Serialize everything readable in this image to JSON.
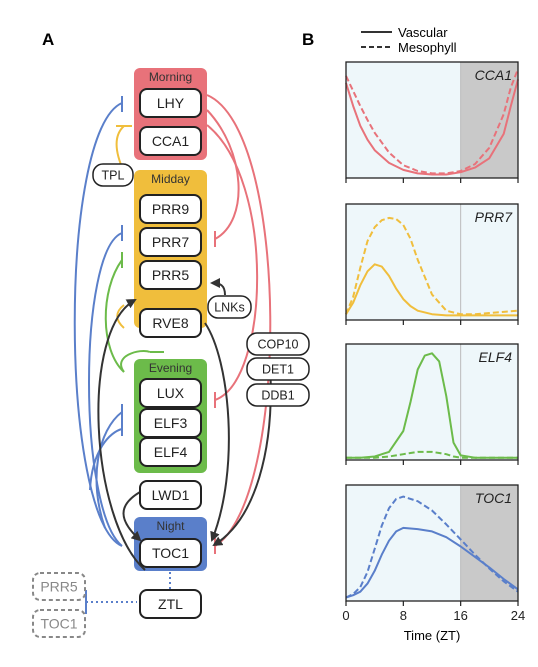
{
  "panel_a": {
    "label": "A",
    "groups": [
      {
        "name": "Morning",
        "color": "#e8727a"
      },
      {
        "name": "Midday",
        "color": "#f0be3c"
      },
      {
        "name": "Evening",
        "color": "#6cbb4a"
      },
      {
        "name": "Night",
        "color": "#5a7fca"
      }
    ],
    "genes": [
      "LHY",
      "CCA1",
      "PRR9",
      "PRR7",
      "PRR5",
      "RVE8",
      "LUX",
      "ELF3",
      "ELF4",
      "LWD1",
      "TOC1",
      "ZTL"
    ],
    "regulators": [
      "TPL",
      "LNKs",
      "COP10",
      "DET1",
      "DDB1"
    ],
    "ztl_targets": [
      "PRR5",
      "TOC1"
    ],
    "edge_colors": {
      "morning": "#e8727a",
      "midday": "#f0be3c",
      "evening": "#6cbb4a",
      "night": "#5a7fca",
      "activation": "#333333"
    }
  },
  "panel_b": {
    "label": "B",
    "legend": {
      "solid": "Vascular",
      "dashed": "Mesophyll"
    },
    "xlabel": "Time (ZT)",
    "xticks": [
      "0",
      "8",
      "16",
      "24"
    ],
    "xlim": [
      0,
      24
    ],
    "night_start": 16,
    "shade_colors": {
      "day": "#eef7fa",
      "night": "#c9c9c9"
    },
    "chart_data": [
      {
        "type": "line",
        "title": "CCA1",
        "color": "#e8727a",
        "x": [
          0,
          1,
          2,
          3,
          4,
          6,
          8,
          10,
          12,
          14,
          16,
          18,
          20,
          22,
          23,
          24
        ],
        "series": [
          {
            "name": "Vascular",
            "values": [
              0.82,
              0.62,
              0.45,
              0.33,
              0.24,
              0.13,
              0.07,
              0.04,
              0.03,
              0.03,
              0.05,
              0.09,
              0.17,
              0.38,
              0.62,
              0.85
            ]
          },
          {
            "name": "Mesophyll",
            "values": [
              0.88,
              0.75,
              0.62,
              0.5,
              0.39,
              0.22,
              0.11,
              0.06,
              0.04,
              0.04,
              0.06,
              0.12,
              0.26,
              0.55,
              0.78,
              0.94
            ]
          }
        ]
      },
      {
        "type": "line",
        "title": "PRR7",
        "color": "#f0be3c",
        "x": [
          0,
          1,
          2,
          3,
          4,
          5,
          6,
          7,
          8,
          9,
          10,
          12,
          14,
          16,
          18,
          20,
          22,
          24
        ],
        "series": [
          {
            "name": "Vascular",
            "values": [
              0.05,
              0.15,
              0.3,
              0.42,
              0.48,
              0.46,
              0.38,
              0.27,
              0.18,
              0.12,
              0.08,
              0.05,
              0.04,
              0.04,
              0.04,
              0.04,
              0.04,
              0.04
            ]
          },
          {
            "name": "Mesophyll",
            "values": [
              0.05,
              0.2,
              0.45,
              0.68,
              0.8,
              0.86,
              0.88,
              0.87,
              0.82,
              0.7,
              0.52,
              0.22,
              0.08,
              0.05,
              0.05,
              0.06,
              0.07,
              0.08
            ]
          }
        ]
      },
      {
        "type": "line",
        "title": "ELF4",
        "color": "#6cbb4a",
        "x": [
          0,
          2,
          4,
          6,
          8,
          9,
          10,
          11,
          12,
          13,
          14,
          15,
          16,
          18,
          20,
          22,
          24
        ],
        "series": [
          {
            "name": "Vascular",
            "values": [
              0.02,
              0.02,
              0.03,
              0.07,
              0.25,
              0.5,
              0.78,
              0.9,
              0.92,
              0.85,
              0.55,
              0.15,
              0.04,
              0.02,
              0.02,
              0.02,
              0.02
            ]
          },
          {
            "name": "Mesophyll",
            "values": [
              0.02,
              0.02,
              0.02,
              0.03,
              0.05,
              0.06,
              0.07,
              0.07,
              0.07,
              0.06,
              0.05,
              0.03,
              0.02,
              0.02,
              0.02,
              0.02,
              0.02
            ]
          }
        ]
      },
      {
        "type": "line",
        "title": "TOC1",
        "color": "#5a7fca",
        "x": [
          0,
          1,
          2,
          3,
          4,
          5,
          6,
          7,
          8,
          10,
          12,
          14,
          16,
          18,
          20,
          22,
          24
        ],
        "series": [
          {
            "name": "Vascular",
            "values": [
              0.03,
              0.05,
              0.08,
              0.15,
              0.26,
              0.4,
              0.52,
              0.6,
              0.63,
              0.62,
              0.6,
              0.55,
              0.47,
              0.38,
              0.29,
              0.19,
              0.1
            ]
          },
          {
            "name": "Mesophyll",
            "values": [
              0.03,
              0.06,
              0.12,
              0.25,
              0.45,
              0.65,
              0.8,
              0.88,
              0.9,
              0.86,
              0.78,
              0.66,
              0.53,
              0.4,
              0.28,
              0.17,
              0.08
            ]
          }
        ]
      }
    ]
  }
}
